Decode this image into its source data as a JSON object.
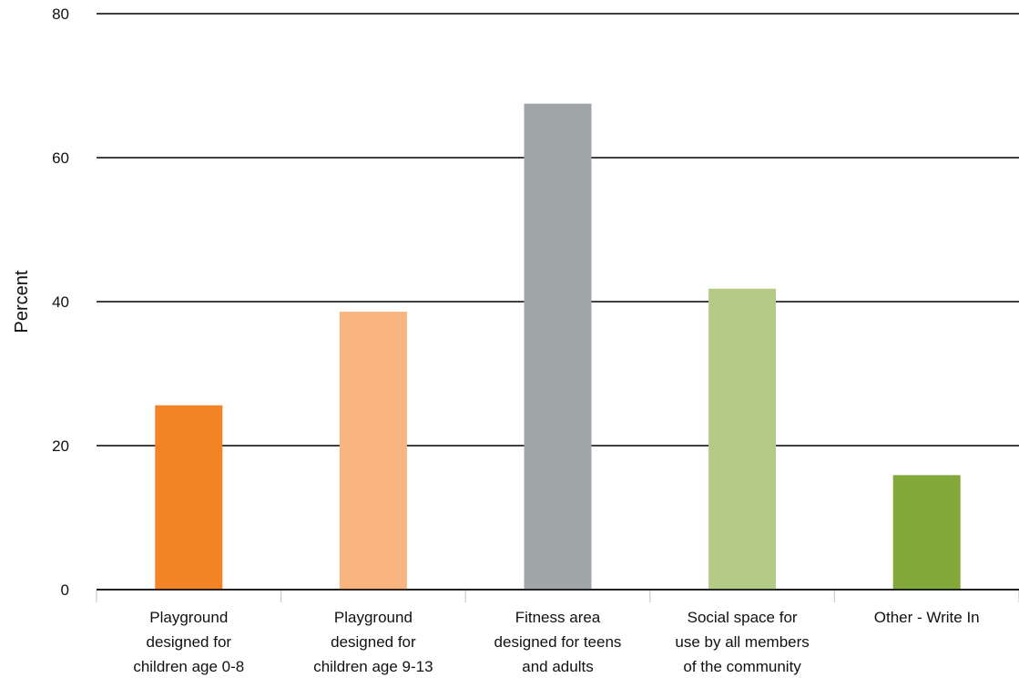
{
  "chart_data": {
    "type": "bar",
    "title": "",
    "xlabel": "",
    "ylabel": "Percent",
    "ylim": [
      0,
      80
    ],
    "yticks": [
      0,
      20,
      40,
      60,
      80
    ],
    "grid": true,
    "categories": [
      [
        "Playground",
        "designed for",
        "children age 0-8"
      ],
      [
        "Playground",
        "designed for",
        "children age 9-13"
      ],
      [
        "Fitness area",
        "designed for teens",
        "and adults"
      ],
      [
        "Social space for",
        "use by all members",
        "of the community"
      ],
      [
        "Other - Write In"
      ]
    ],
    "values": [
      25.6,
      38.6,
      67.5,
      41.8,
      15.9
    ],
    "colors": [
      "#f38426",
      "#f8b47e",
      "#a0a5a8",
      "#b4cb87",
      "#82a83a"
    ]
  }
}
